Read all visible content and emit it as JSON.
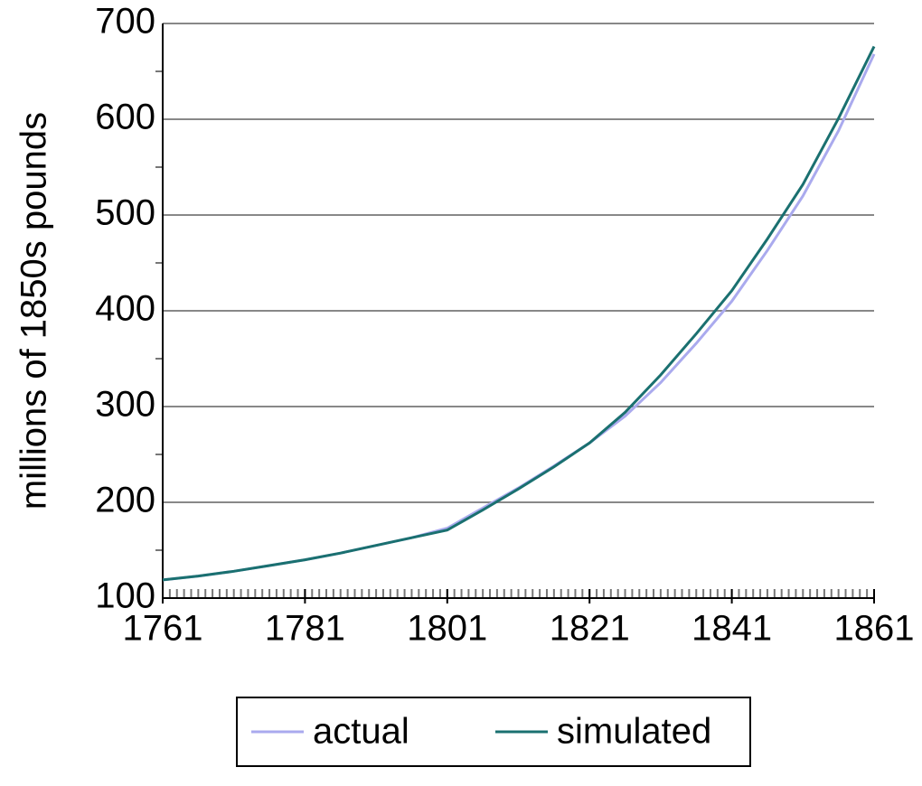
{
  "chart_data": {
    "type": "line",
    "y_label": "millions of 1850s pounds",
    "x": [
      1761,
      1766,
      1771,
      1776,
      1781,
      1786,
      1791,
      1796,
      1801,
      1806,
      1811,
      1816,
      1821,
      1826,
      1831,
      1836,
      1841,
      1846,
      1851,
      1856,
      1861
    ],
    "series": [
      {
        "name": "actual",
        "color": "#aaaaee",
        "values": [
          119,
          123,
          128,
          134,
          140,
          147,
          155,
          163,
          173,
          194,
          215,
          238,
          262,
          290,
          325,
          366,
          410,
          463,
          520,
          588,
          668
        ]
      },
      {
        "name": "simulated",
        "color": "#1a7070",
        "values": [
          119,
          123,
          128,
          134,
          140,
          147,
          155,
          163,
          171,
          192,
          214,
          237,
          262,
          294,
          333,
          376,
          421,
          475,
          532,
          601,
          676
        ]
      }
    ],
    "xlim": [
      1761,
      1861
    ],
    "xticks": [
      1761,
      1781,
      1801,
      1821,
      1841,
      1861
    ],
    "ylim": [
      100,
      700
    ],
    "yticks": [
      100,
      200,
      300,
      400,
      500,
      600,
      700
    ],
    "grid": true,
    "legend": "bottom"
  }
}
